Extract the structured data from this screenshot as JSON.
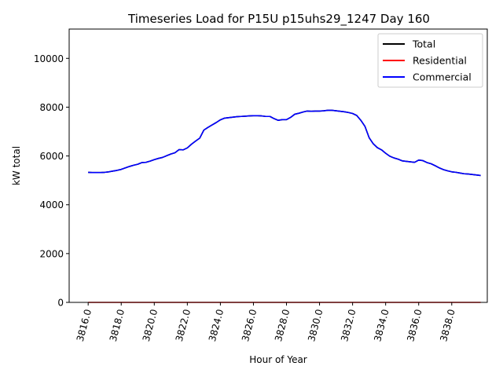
{
  "chart_data": {
    "type": "line",
    "title": "Timeseries Load for P15U p15uhs29_1247  Day 160",
    "xlabel": "Hour of Year",
    "ylabel": "kW total",
    "xlim": [
      3814.85,
      3840.15
    ],
    "ylim": [
      0,
      11200
    ],
    "xticks": [
      3816,
      3818,
      3820,
      3822,
      3824,
      3826,
      3828,
      3830,
      3832,
      3834,
      3836,
      3838
    ],
    "xtick_labels": [
      "3816.0",
      "3818.0",
      "3820.0",
      "3822.0",
      "3824.0",
      "3826.0",
      "3828.0",
      "3830.0",
      "3832.0",
      "3834.0",
      "3836.0",
      "3838.0"
    ],
    "yticks": [
      0,
      2000,
      4000,
      6000,
      8000,
      10000
    ],
    "ytick_labels": [
      "0",
      "2000",
      "4000",
      "6000",
      "8000",
      "10000"
    ],
    "legend_position": "top-right",
    "x": [
      3816.0,
      3816.25,
      3816.5,
      3816.75,
      3817.0,
      3817.25,
      3817.5,
      3817.75,
      3818.0,
      3818.25,
      3818.5,
      3818.75,
      3819.0,
      3819.25,
      3819.5,
      3819.75,
      3820.0,
      3820.25,
      3820.5,
      3820.75,
      3821.0,
      3821.25,
      3821.5,
      3821.75,
      3822.0,
      3822.25,
      3822.5,
      3822.75,
      3823.0,
      3823.25,
      3823.5,
      3823.75,
      3824.0,
      3824.25,
      3824.5,
      3824.75,
      3825.0,
      3825.25,
      3825.5,
      3825.75,
      3826.0,
      3826.25,
      3826.5,
      3826.75,
      3827.0,
      3827.25,
      3827.5,
      3827.75,
      3828.0,
      3828.25,
      3828.5,
      3828.75,
      3829.0,
      3829.25,
      3829.5,
      3829.75,
      3830.0,
      3830.25,
      3830.5,
      3830.75,
      3831.0,
      3831.25,
      3831.5,
      3831.75,
      3832.0,
      3832.25,
      3832.5,
      3832.75,
      3833.0,
      3833.25,
      3833.5,
      3833.75,
      3834.0,
      3834.25,
      3834.5,
      3834.75,
      3835.0,
      3835.25,
      3835.5,
      3835.75,
      3836.0,
      3836.25,
      3836.5,
      3836.75,
      3837.0,
      3837.25,
      3837.5,
      3837.75,
      3838.0,
      3838.25,
      3838.5,
      3838.75,
      3839.0,
      3839.25,
      3839.5,
      3839.75
    ],
    "series": [
      {
        "name": "Total",
        "color": "#000000",
        "values": [
          5330,
          5320,
          5320,
          5320,
          5330,
          5350,
          5380,
          5410,
          5450,
          5510,
          5570,
          5620,
          5660,
          5730,
          5740,
          5790,
          5850,
          5900,
          5940,
          6010,
          6080,
          6130,
          6260,
          6250,
          6330,
          6480,
          6610,
          6730,
          7060,
          7170,
          7270,
          7370,
          7480,
          7550,
          7570,
          7590,
          7610,
          7620,
          7630,
          7640,
          7650,
          7650,
          7640,
          7620,
          7620,
          7530,
          7460,
          7490,
          7490,
          7580,
          7710,
          7750,
          7800,
          7840,
          7830,
          7840,
          7840,
          7850,
          7870,
          7870,
          7850,
          7830,
          7810,
          7780,
          7740,
          7660,
          7460,
          7210,
          6750,
          6500,
          6340,
          6250,
          6110,
          5990,
          5920,
          5870,
          5800,
          5780,
          5760,
          5740,
          5830,
          5810,
          5730,
          5680,
          5600,
          5510,
          5440,
          5390,
          5350,
          5330,
          5300,
          5270,
          5260,
          5240,
          5220,
          5200
        ]
      },
      {
        "name": "Residential",
        "color": "#ff0000",
        "values": [
          0,
          0,
          0,
          0,
          0,
          0,
          0,
          0,
          0,
          0,
          0,
          0,
          0,
          0,
          0,
          0,
          0,
          0,
          0,
          0,
          0,
          0,
          0,
          0,
          0,
          0,
          0,
          0,
          0,
          0,
          0,
          0,
          0,
          0,
          0,
          0,
          0,
          0,
          0,
          0,
          0,
          0,
          0,
          0,
          0,
          0,
          0,
          0,
          0,
          0,
          0,
          0,
          0,
          0,
          0,
          0,
          0,
          0,
          0,
          0,
          0,
          0,
          0,
          0,
          0,
          0,
          0,
          0,
          0,
          0,
          0,
          0,
          0,
          0,
          0,
          0,
          0,
          0,
          0,
          0,
          0,
          0,
          0,
          0,
          0,
          0,
          0,
          0,
          0,
          0,
          0,
          0,
          0,
          0,
          0,
          0
        ]
      },
      {
        "name": "Commercial",
        "color": "#0000ff",
        "values": [
          5330,
          5320,
          5320,
          5320,
          5330,
          5350,
          5380,
          5410,
          5450,
          5510,
          5570,
          5620,
          5660,
          5730,
          5740,
          5790,
          5850,
          5900,
          5940,
          6010,
          6080,
          6130,
          6260,
          6250,
          6330,
          6480,
          6610,
          6730,
          7060,
          7170,
          7270,
          7370,
          7480,
          7550,
          7570,
          7590,
          7610,
          7620,
          7630,
          7640,
          7650,
          7650,
          7640,
          7620,
          7620,
          7530,
          7460,
          7490,
          7490,
          7580,
          7710,
          7750,
          7800,
          7840,
          7830,
          7840,
          7840,
          7850,
          7870,
          7870,
          7850,
          7830,
          7810,
          7780,
          7740,
          7660,
          7460,
          7210,
          6750,
          6500,
          6340,
          6250,
          6110,
          5990,
          5920,
          5870,
          5800,
          5780,
          5760,
          5740,
          5830,
          5810,
          5730,
          5680,
          5600,
          5510,
          5440,
          5390,
          5350,
          5330,
          5300,
          5270,
          5260,
          5240,
          5220,
          5200
        ]
      }
    ]
  }
}
